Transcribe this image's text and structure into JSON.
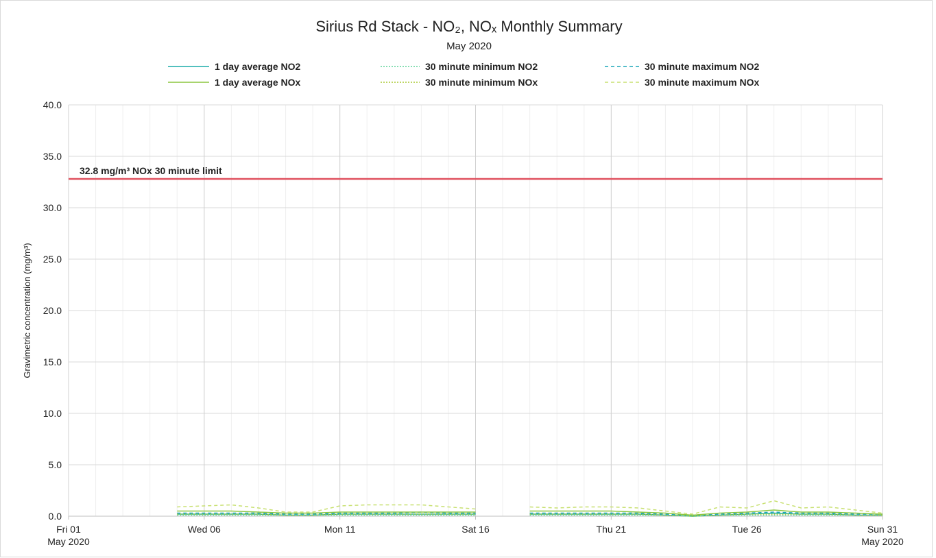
{
  "chart_data": {
    "type": "line",
    "title": "Sirius Rd Stack - NO₂, NOₓ Monthly Summary",
    "subtitle": "May 2020",
    "y_label": "Gravimetric concentration (mg/m³)",
    "x": [
      "2020-05-01",
      "2020-05-02",
      "2020-05-03",
      "2020-05-04",
      "2020-05-05",
      "2020-05-06",
      "2020-05-07",
      "2020-05-08",
      "2020-05-09",
      "2020-05-10",
      "2020-05-11",
      "2020-05-12",
      "2020-05-13",
      "2020-05-14",
      "2020-05-15",
      "2020-05-16",
      "2020-05-17",
      "2020-05-18",
      "2020-05-19",
      "2020-05-20",
      "2020-05-21",
      "2020-05-22",
      "2020-05-23",
      "2020-05-24",
      "2020-05-25",
      "2020-05-26",
      "2020-05-27",
      "2020-05-28",
      "2020-05-29",
      "2020-05-30",
      "2020-05-31"
    ],
    "xlim": [
      "2020-05-01",
      "2020-05-31"
    ],
    "xticks": [
      {
        "value": "2020-05-01",
        "label": "Fri 01\nMay 2020"
      },
      {
        "value": "2020-05-06",
        "label": "Wed 06"
      },
      {
        "value": "2020-05-11",
        "label": "Mon 11"
      },
      {
        "value": "2020-05-16",
        "label": "Sat 16"
      },
      {
        "value": "2020-05-21",
        "label": "Thu 21"
      },
      {
        "value": "2020-05-26",
        "label": "Tue 26"
      },
      {
        "value": "2020-05-31",
        "label": "Sun 31\nMay 2020"
      }
    ],
    "ylim": [
      0,
      40
    ],
    "yticks": [
      {
        "value": 0,
        "label": "0.0"
      },
      {
        "value": 5,
        "label": "5.0"
      },
      {
        "value": 10,
        "label": "10.0"
      },
      {
        "value": 15,
        "label": "15.0"
      },
      {
        "value": 20,
        "label": "20.0"
      },
      {
        "value": 25,
        "label": "25.0"
      },
      {
        "value": 30,
        "label": "30.0"
      },
      {
        "value": 35,
        "label": "35.0"
      },
      {
        "value": 40,
        "label": "40.0"
      }
    ],
    "grid": true,
    "minor_grid": true,
    "limit": {
      "value": 32.8,
      "label": "32.8 mg/m³ NOx 30 minute limit",
      "color": "#e0505e"
    },
    "series": [
      {
        "name": "1 day average NO2",
        "color": "#1aaba8",
        "dash": "solid",
        "values": [
          null,
          null,
          null,
          null,
          0.2,
          0.2,
          0.2,
          0.2,
          0.1,
          0.1,
          0.2,
          0.2,
          0.2,
          0.2,
          0.2,
          0.2,
          null,
          0.2,
          0.2,
          0.2,
          0.2,
          0.2,
          0.1,
          0.0,
          0.1,
          0.2,
          0.3,
          0.2,
          0.2,
          0.1,
          0.1
        ]
      },
      {
        "name": "30 minute minimum NO2",
        "color": "#5fd49a",
        "dash": "dotted",
        "values": [
          null,
          null,
          null,
          null,
          0.1,
          0.1,
          0.1,
          0.1,
          0.1,
          0.1,
          0.1,
          0.1,
          0.1,
          0.1,
          0.1,
          0.1,
          null,
          0.1,
          0.1,
          0.1,
          0.1,
          0.1,
          0.1,
          0.0,
          0.1,
          0.1,
          0.1,
          0.1,
          0.1,
          0.1,
          0.1
        ]
      },
      {
        "name": "30 minute maximum NO2",
        "color": "#1aa6b8",
        "dash": "dashed",
        "values": [
          null,
          null,
          null,
          null,
          0.3,
          0.3,
          0.3,
          0.3,
          0.2,
          0.2,
          0.3,
          0.3,
          0.3,
          0.4,
          0.3,
          0.3,
          null,
          0.3,
          0.3,
          0.3,
          0.3,
          0.3,
          0.2,
          0.1,
          0.2,
          0.3,
          0.4,
          0.3,
          0.3,
          0.2,
          0.2
        ]
      },
      {
        "name": "1 day average NOx",
        "color": "#8cc63f",
        "dash": "solid",
        "values": [
          null,
          null,
          null,
          null,
          0.5,
          0.5,
          0.5,
          0.4,
          0.3,
          0.3,
          0.4,
          0.4,
          0.4,
          0.4,
          0.4,
          0.4,
          null,
          0.5,
          0.5,
          0.5,
          0.5,
          0.4,
          0.3,
          0.1,
          0.3,
          0.4,
          0.6,
          0.4,
          0.4,
          0.3,
          0.2
        ]
      },
      {
        "name": "30 minute minimum NOx",
        "color": "#a8c830",
        "dash": "dotted",
        "values": [
          null,
          null,
          null,
          null,
          0.2,
          0.2,
          0.2,
          0.2,
          0.1,
          0.1,
          0.2,
          0.2,
          0.2,
          0.2,
          0.2,
          0.2,
          null,
          0.2,
          0.2,
          0.2,
          0.2,
          0.2,
          0.1,
          0.0,
          0.1,
          0.2,
          0.2,
          0.2,
          0.2,
          0.1,
          0.1
        ]
      },
      {
        "name": "30 minute maximum NOx",
        "color": "#c8e070",
        "dash": "dashed",
        "values": [
          null,
          null,
          null,
          null,
          0.9,
          1.0,
          1.1,
          0.8,
          0.4,
          0.4,
          1.0,
          1.1,
          1.1,
          1.1,
          0.9,
          0.7,
          null,
          0.9,
          0.8,
          0.9,
          0.9,
          0.8,
          0.5,
          0.2,
          0.9,
          0.8,
          1.5,
          0.8,
          0.9,
          0.6,
          0.3
        ]
      }
    ]
  }
}
